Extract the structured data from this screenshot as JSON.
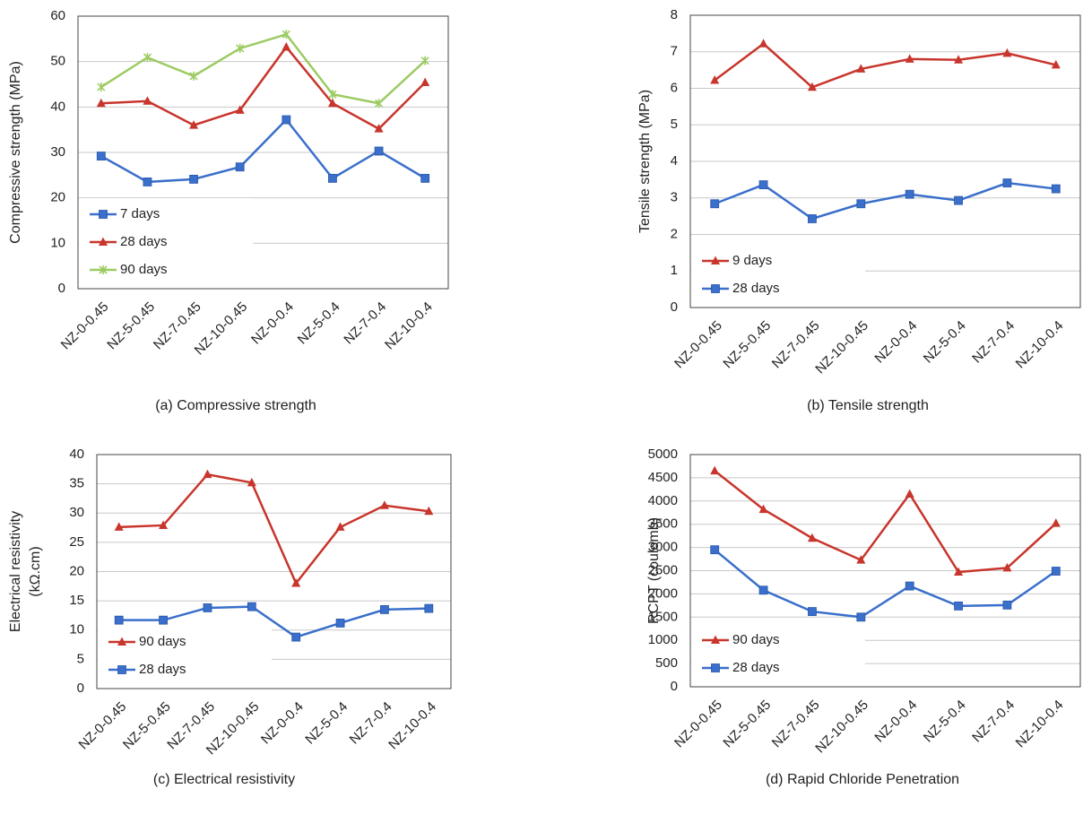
{
  "chart_data": [
    {
      "type": "line",
      "y_label": [
        "Compressive strength (MPa)"
      ],
      "caption": "(a) Compressive strength",
      "categories": [
        "NZ-0-0.45",
        "NZ-5-0.45",
        "NZ-7-0.45",
        "NZ-10-0.45",
        "NZ-0-0.4",
        "NZ-5-0.4",
        "NZ-7-0.4",
        "NZ-10-0.4"
      ],
      "series": [
        {
          "name": "7 days",
          "color": "#3a6fcb",
          "marker": "square",
          "values": [
            29.2,
            23.5,
            24.1,
            26.8,
            37.2,
            24.3,
            30.3,
            24.3
          ]
        },
        {
          "name": "28 days",
          "color": "#c8352c",
          "marker": "triangle",
          "values": [
            40.8,
            41.3,
            36.0,
            39.3,
            53.2,
            40.8,
            35.2,
            45.4
          ]
        },
        {
          "name": "90 days",
          "color": "#9ccb62",
          "marker": "star",
          "values": [
            44.4,
            50.9,
            46.8,
            52.9,
            56.0,
            42.8,
            40.8,
            50.2
          ]
        }
      ],
      "ylim": [
        0,
        60
      ],
      "yticks": [
        0,
        10,
        20,
        30,
        40,
        50,
        60
      ],
      "grid": true,
      "legend": "lower left"
    },
    {
      "type": "line",
      "y_label": [
        "Tensile strength (MPa)"
      ],
      "caption": "(b) Tensile strength",
      "categories": [
        "NZ-0-0.45",
        "NZ-5-0.45",
        "NZ-7-0.45",
        "NZ-10-0.45",
        "NZ-0-0.4",
        "NZ-5-0.4",
        "NZ-7-0.4",
        "NZ-10-0.4"
      ],
      "series": [
        {
          "name": "9 days",
          "color": "#c8352c",
          "marker": "triangle",
          "values": [
            6.22,
            7.22,
            6.03,
            6.53,
            6.8,
            6.78,
            6.96,
            6.64
          ]
        },
        {
          "name": "28 days",
          "color": "#3a6fcb",
          "marker": "square",
          "values": [
            2.84,
            3.36,
            2.43,
            2.84,
            3.1,
            2.93,
            3.41,
            3.25
          ]
        }
      ],
      "ylim": [
        0,
        8
      ],
      "yticks": [
        0,
        1,
        2,
        3,
        4,
        5,
        6,
        7,
        8
      ],
      "grid": true,
      "legend": "lower left"
    },
    {
      "type": "line",
      "y_label": [
        "Electrical resistivity",
        "(kΩ.cm)"
      ],
      "caption": "(c) Electrical resistivity",
      "categories": [
        "NZ-0-0.45",
        "NZ-5-0.45",
        "NZ-7-0.45",
        "NZ-10-0.45",
        "NZ-0-0.4",
        "NZ-5-0.4",
        "NZ-7-0.4",
        "NZ-10-0.4"
      ],
      "series": [
        {
          "name": "90 days",
          "color": "#c8352c",
          "marker": "triangle",
          "values": [
            27.6,
            27.9,
            36.6,
            35.2,
            18.0,
            27.6,
            31.3,
            30.3
          ]
        },
        {
          "name": "28 days",
          "color": "#3a6fcb",
          "marker": "square",
          "values": [
            11.7,
            11.7,
            13.8,
            14.0,
            8.8,
            11.2,
            13.5,
            13.7
          ]
        }
      ],
      "ylim": [
        0,
        40
      ],
      "yticks": [
        0,
        5,
        10,
        15,
        20,
        25,
        30,
        35,
        40
      ],
      "grid": true,
      "legend": "lower left"
    },
    {
      "type": "line",
      "y_label": [
        "RCPT (coulomb)"
      ],
      "caption": "(d) Rapid Chloride Penetration",
      "categories": [
        "NZ-0-0.45",
        "NZ-5-0.45",
        "NZ-7-0.45",
        "NZ-10-0.45",
        "NZ-0-0.4",
        "NZ-5-0.4",
        "NZ-7-0.4",
        "NZ-10-0.4"
      ],
      "series": [
        {
          "name": "90 days",
          "color": "#c8352c",
          "marker": "triangle",
          "values": [
            4650,
            3820,
            3200,
            2730,
            4150,
            2470,
            2560,
            3520
          ]
        },
        {
          "name": "28 days",
          "color": "#3a6fcb",
          "marker": "square",
          "values": [
            2950,
            2080,
            1620,
            1500,
            2170,
            1740,
            1760,
            2490
          ]
        }
      ],
      "ylim": [
        0,
        5000
      ],
      "yticks": [
        0,
        500,
        1000,
        1500,
        2000,
        2500,
        3000,
        3500,
        4000,
        4500,
        5000
      ],
      "grid": true,
      "legend": "lower left"
    }
  ]
}
